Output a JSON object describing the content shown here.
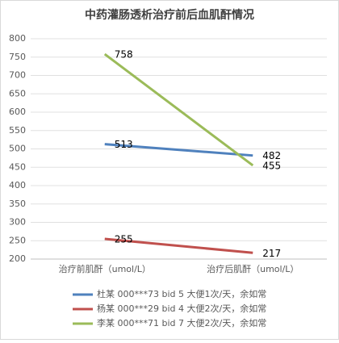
{
  "chart_data": {
    "type": "line",
    "title": "中药灌肠透析治疗前后血肌酐情况",
    "categories": [
      "治疗前肌酐（umol/L）",
      "治疗后肌酐（umol/L）"
    ],
    "series": [
      {
        "name": "杜某 000***73 bid 5 大便1次/天，余如常",
        "color": "#4f81bd",
        "values": [
          513,
          482
        ]
      },
      {
        "name": "杨某 000***29 bid 4 大便2次/天，余如常",
        "color": "#c0504d",
        "values": [
          255,
          217
        ]
      },
      {
        "name": "李某 000***71 bid 7 大便2次/天，余如常",
        "color": "#9bbb59",
        "values": [
          758,
          455
        ]
      }
    ],
    "ylim": [
      200,
      800
    ],
    "yticks": [
      200,
      250,
      300,
      350,
      400,
      450,
      500,
      550,
      600,
      650,
      700,
      750,
      800
    ],
    "grid": true,
    "legend": "bottom"
  }
}
